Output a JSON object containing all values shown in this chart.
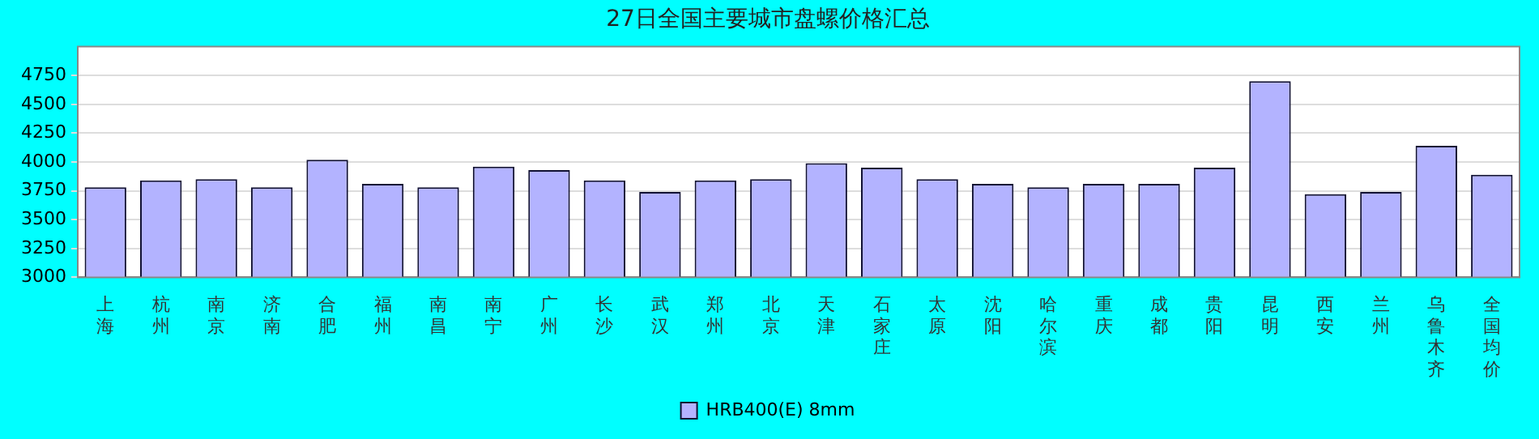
{
  "chart_data": {
    "type": "bar",
    "title": "27日全国主要城市盘螺价格汇总",
    "categories": [
      "上海",
      "杭州",
      "南京",
      "济南",
      "合肥",
      "福州",
      "南昌",
      "南宁",
      "广州",
      "长沙",
      "武汉",
      "郑州",
      "北京",
      "天津",
      "石家庄",
      "太原",
      "沈阳",
      "哈尔滨",
      "重庆",
      "成都",
      "贵阳",
      "昆明",
      "西安",
      "兰州",
      "乌鲁木齐",
      "全国均价"
    ],
    "series": [
      {
        "name": "HRB400(E) 8mm",
        "color": "#b3b3ff",
        "values": [
          3780,
          3840,
          3850,
          3780,
          4020,
          3810,
          3780,
          3960,
          3930,
          3840,
          3740,
          3840,
          3850,
          3990,
          3950,
          3850,
          3810,
          3780,
          3810,
          3810,
          3950,
          4700,
          3720,
          3740,
          4140,
          3890
        ]
      }
    ],
    "ylim": [
      3000,
      5000
    ],
    "yticks": [
      3000,
      3250,
      3500,
      3750,
      4000,
      4250,
      4500,
      4750
    ],
    "grid": "y",
    "legend": "bottom"
  }
}
